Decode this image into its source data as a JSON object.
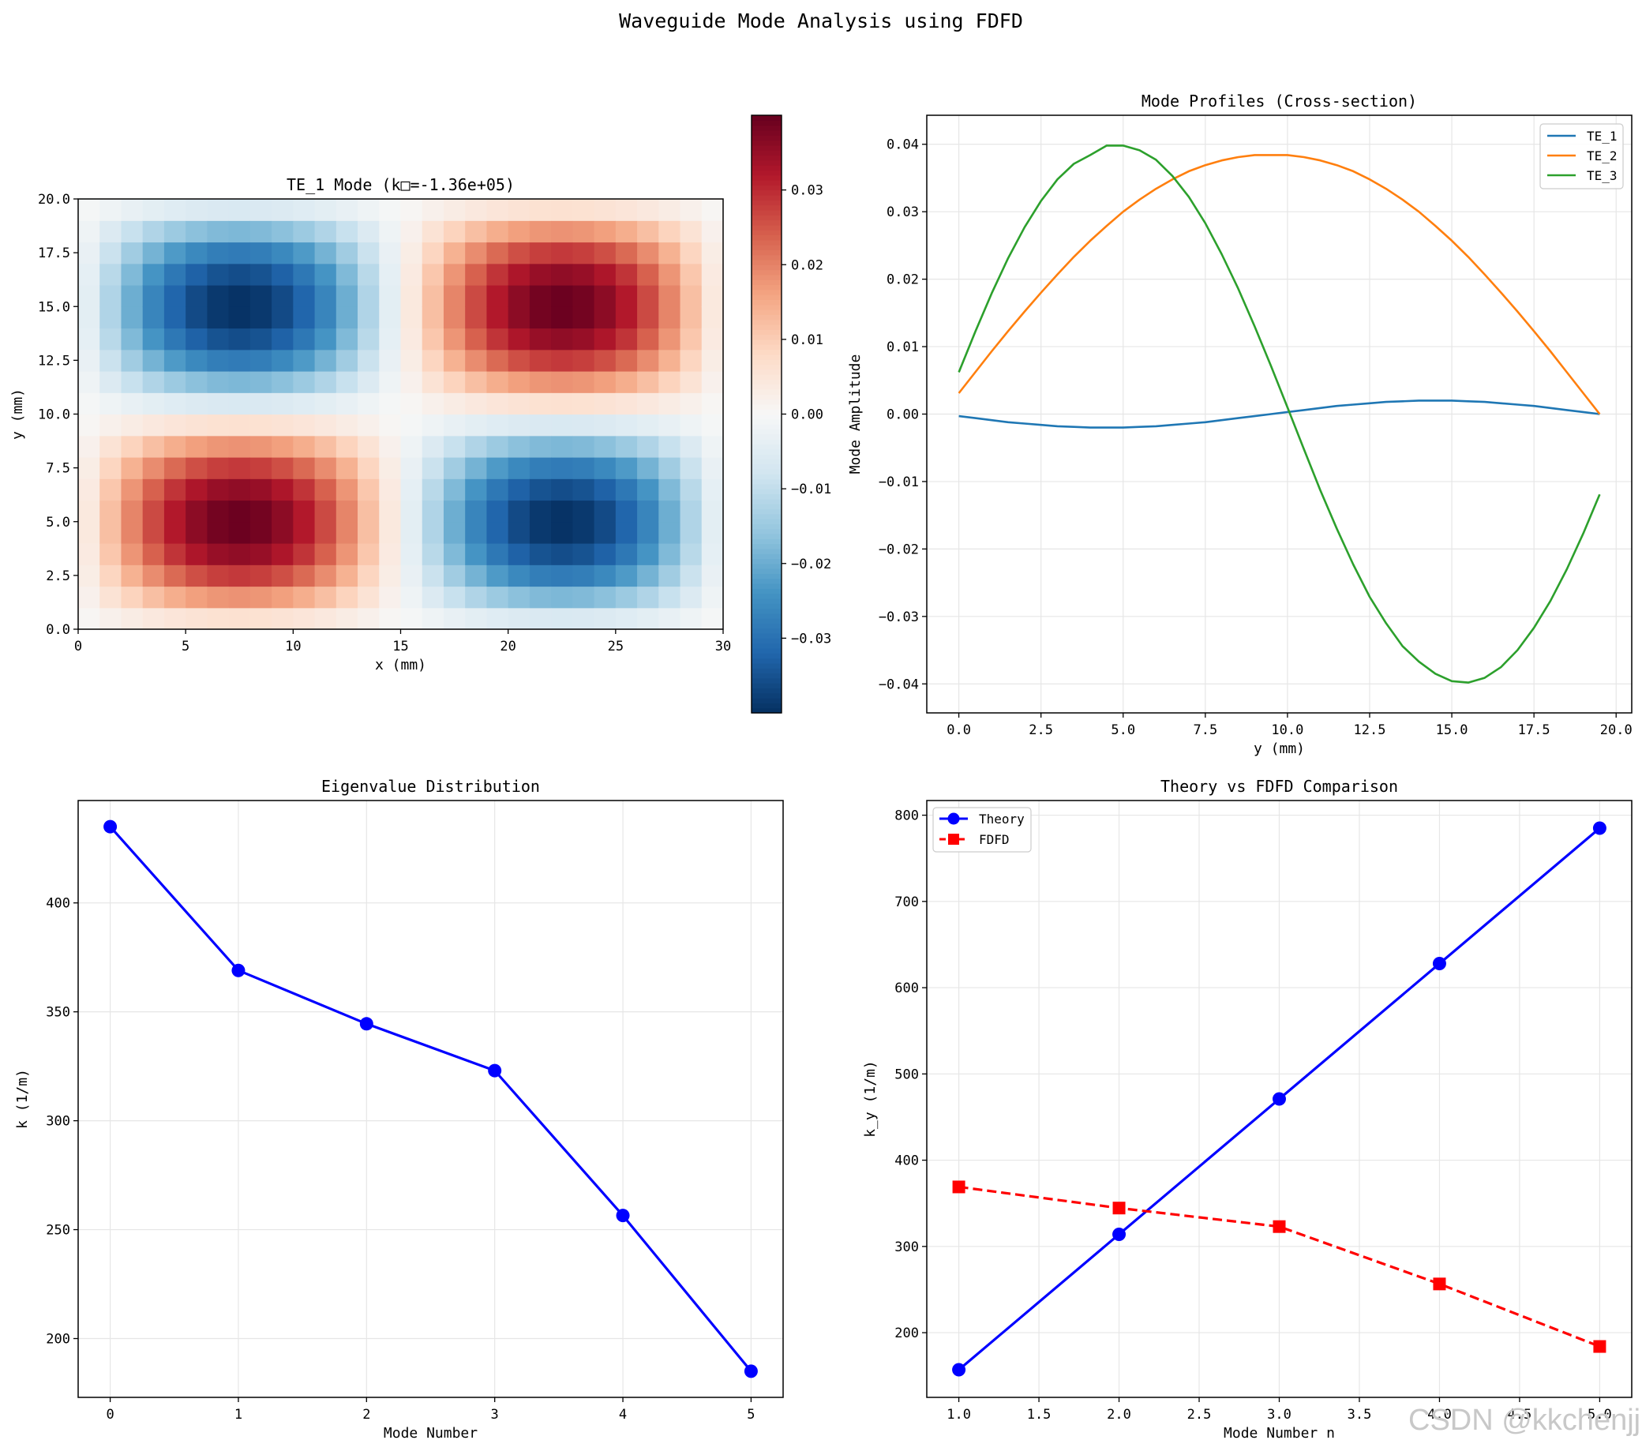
{
  "figure": {
    "suptitle": "Waveguide Mode Analysis using FDFD",
    "watermark": "CSDN @kkchenjj"
  },
  "colors": {
    "te1": "#1f77b4",
    "te2": "#ff7f0e",
    "te3": "#2ca02c",
    "eig": "#0000ff",
    "theory": "#0000ff",
    "fdfd": "#ff0000",
    "grid": "#e6e6e6",
    "neg": "#053061",
    "pos": "#67001f"
  },
  "chart_data": [
    {
      "id": "heatmap",
      "type": "heatmap",
      "title": "TE_1 Mode (k□=-1.36e+05)",
      "xlabel": "x (mm)",
      "ylabel": "y (mm)",
      "xlim": [
        0,
        30
      ],
      "ylim": [
        0,
        20
      ],
      "xticks": [
        0,
        5,
        10,
        15,
        20,
        25,
        30
      ],
      "yticks": [
        0.0,
        2.5,
        5.0,
        7.5,
        10.0,
        12.5,
        15.0,
        17.5,
        20.0
      ],
      "grid": [
        30,
        20
      ],
      "field": "sin(2*pi*x/30) * sin(2*pi*y/20)",
      "amplitude": 0.04,
      "colorbar": {
        "cmap": "RdBu_r",
        "vmin": -0.04,
        "vmax": 0.04,
        "ticks": [
          -0.03,
          -0.02,
          -0.01,
          0.0,
          0.01,
          0.02,
          0.03
        ]
      }
    },
    {
      "id": "profiles",
      "type": "line",
      "title": "Mode Profiles (Cross-section)",
      "xlabel": "y (mm)",
      "ylabel": "Mode Amplitude",
      "xlim": [
        -0.975,
        20.475
      ],
      "ylim": [
        -0.0443,
        0.0443
      ],
      "xticks": [
        0.0,
        2.5,
        5.0,
        7.5,
        10.0,
        12.5,
        15.0,
        17.5,
        20.0
      ],
      "yticks": [
        -0.04,
        -0.03,
        -0.02,
        -0.01,
        0.0,
        0.01,
        0.02,
        0.03,
        0.04
      ],
      "grid": true,
      "legend": "top-right",
      "x": [
        0.0,
        0.5,
        1.0,
        1.5,
        2.0,
        2.5,
        3.0,
        3.5,
        4.0,
        4.5,
        5.0,
        5.5,
        6.0,
        6.5,
        7.0,
        7.5,
        8.0,
        8.5,
        9.0,
        9.5,
        10.0,
        10.5,
        11.0,
        11.5,
        12.0,
        12.5,
        13.0,
        13.5,
        14.0,
        14.5,
        15.0,
        15.5,
        16.0,
        16.5,
        17.0,
        17.5,
        18.0,
        18.5,
        19.0,
        19.5
      ],
      "series": [
        {
          "name": "TE_1",
          "values": [
            -0.0003,
            -0.0006,
            -0.0009,
            -0.0012,
            -0.0014,
            -0.0016,
            -0.0018,
            -0.0019,
            -0.002,
            -0.002,
            -0.002,
            -0.0019,
            -0.0018,
            -0.0016,
            -0.0014,
            -0.0012,
            -0.0009,
            -0.0006,
            -0.0003,
            0.0,
            0.0003,
            0.0006,
            0.0009,
            0.0012,
            0.0014,
            0.0016,
            0.0018,
            0.0019,
            0.002,
            0.002,
            0.002,
            0.0019,
            0.0018,
            0.0016,
            0.0014,
            0.0012,
            0.0009,
            0.0006,
            0.0003,
            0.0
          ]
        },
        {
          "name": "TE_2",
          "values": [
            0.0031,
            0.0062,
            0.0093,
            0.0123,
            0.0152,
            0.018,
            0.0207,
            0.0233,
            0.0257,
            0.0279,
            0.03,
            0.0318,
            0.0334,
            0.0348,
            0.036,
            0.0369,
            0.0376,
            0.0381,
            0.0384,
            0.0384,
            0.0384,
            0.0381,
            0.0376,
            0.0369,
            0.036,
            0.0348,
            0.0334,
            0.0318,
            0.03,
            0.0279,
            0.0257,
            0.0233,
            0.0207,
            0.018,
            0.0152,
            0.0123,
            0.0093,
            0.0062,
            0.0031,
            0.0
          ]
        },
        {
          "name": "TE_3",
          "values": [
            0.0062,
            0.0122,
            0.0179,
            0.0231,
            0.0277,
            0.0316,
            0.0348,
            0.0371,
            0.0384,
            0.0398,
            0.0398,
            0.0391,
            0.0377,
            0.0353,
            0.0322,
            0.0283,
            0.0237,
            0.0186,
            0.013,
            0.0071,
            0.001,
            -0.0052,
            -0.0113,
            -0.017,
            -0.0223,
            -0.0271,
            -0.031,
            -0.0344,
            -0.0367,
            -0.0385,
            -0.0396,
            -0.0398,
            -0.0391,
            -0.0375,
            -0.035,
            -0.0317,
            -0.0277,
            -0.023,
            -0.0177,
            -0.0119
          ]
        }
      ]
    },
    {
      "id": "eigen",
      "type": "line",
      "title": "Eigenvalue Distribution",
      "xlabel": "Mode Number",
      "ylabel": "k (1/m)",
      "xlim": [
        -0.25,
        5.25
      ],
      "ylim": [
        173,
        447
      ],
      "xticks": [
        0,
        1,
        2,
        3,
        4,
        5
      ],
      "yticks": [
        200,
        250,
        300,
        350,
        400
      ],
      "grid": true,
      "x": [
        0,
        1,
        2,
        3,
        4,
        5
      ],
      "series": [
        {
          "name": "k",
          "values": [
            435,
            369,
            344.5,
            323,
            256.5,
            185
          ]
        }
      ]
    },
    {
      "id": "compare",
      "type": "line",
      "title": "Theory vs FDFD Comparison",
      "xlabel": "Mode Number n",
      "ylabel": "k_y (1/m)",
      "xlim": [
        0.8,
        5.2
      ],
      "ylim": [
        125,
        817
      ],
      "xticks": [
        1.0,
        1.5,
        2.0,
        2.5,
        3.0,
        3.5,
        4.0,
        4.5,
        5.0
      ],
      "yticks": [
        200,
        300,
        400,
        500,
        600,
        700,
        800
      ],
      "grid": true,
      "legend": "top-left",
      "x": [
        1,
        2,
        3,
        4,
        5
      ],
      "series": [
        {
          "name": "Theory",
          "values": [
            157,
            314,
            471,
            628,
            785
          ]
        },
        {
          "name": "FDFD",
          "values": [
            369,
            344.5,
            323,
            256.5,
            184
          ]
        }
      ]
    }
  ]
}
